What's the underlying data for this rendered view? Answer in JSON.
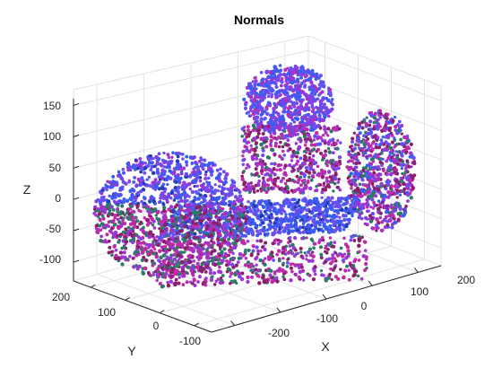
{
  "chart_data": {
    "type": "scatter",
    "title": "Normals",
    "xlabel": "X",
    "ylabel": "Y",
    "zlabel": "Z",
    "xticks": [
      "-200",
      "-100",
      "0",
      "100",
      "200"
    ],
    "yticks": [
      "200",
      "100",
      "0",
      "-100"
    ],
    "zticks": [
      "150",
      "100",
      "50",
      "0",
      "-50",
      "-100"
    ],
    "xlim": [
      -250,
      250
    ],
    "ylim": [
      -150,
      250
    ],
    "zlim": [
      -130,
      175
    ],
    "grid": true,
    "projection": "3d",
    "colormap": [
      "#1f3fb0",
      "#3a5cf0",
      "#6c4df0",
      "#9a35d8",
      "#c02aa8",
      "#8a1f6a",
      "#2b7a6a"
    ],
    "objects": [
      {
        "shape": "sphere",
        "center": [
          -160,
          40,
          -50
        ],
        "radius": 75
      },
      {
        "shape": "box",
        "center": [
          -30,
          -20,
          -70
        ],
        "size": [
          210,
          120,
          80
        ]
      },
      {
        "shape": "cylinder",
        "center": [
          -100,
          -20,
          105
        ],
        "radius": 60,
        "height": 120
      },
      {
        "shape": "disc",
        "center": [
          120,
          20,
          60
        ],
        "radius": 85
      }
    ]
  }
}
